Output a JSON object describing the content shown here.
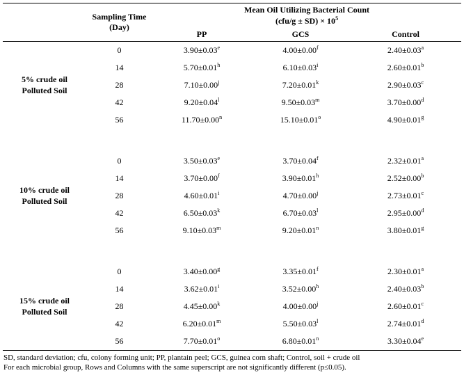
{
  "header": {
    "sampling_time_line1": "Sampling Time",
    "sampling_time_line2": "(Day)",
    "main_line1": "Mean Oil Utilizing Bacterial Count",
    "main_line2": "(cfu/g ± SD) × 10",
    "main_line2_sup": "5",
    "columns": [
      "PP",
      "GCS",
      "Control"
    ]
  },
  "groups": [
    {
      "label": "5% crude oil Polluted Soil",
      "label_lines": [
        "5% crude oil",
        "Polluted Soil"
      ],
      "rows": [
        {
          "day": "0",
          "pp": [
            "3.90±0.03",
            "e"
          ],
          "gcs": [
            "4.00±0.00",
            "f"
          ],
          "control": [
            "2.40±0.03",
            "a"
          ]
        },
        {
          "day": "14",
          "pp": [
            "5.70±0.01",
            "h"
          ],
          "gcs": [
            "6.10±0.03",
            "i"
          ],
          "control": [
            "2.60±0.01",
            "b"
          ]
        },
        {
          "day": "28",
          "pp": [
            "7.10±0.00",
            "j"
          ],
          "gcs": [
            "7.20±0.01",
            "k"
          ],
          "control": [
            "2.90±0.03",
            "c"
          ]
        },
        {
          "day": "42",
          "pp": [
            "9.20±0.04",
            "l"
          ],
          "gcs": [
            "9.50±0.03",
            "m"
          ],
          "control": [
            "3.70±0.00",
            "d"
          ]
        },
        {
          "day": "56",
          "pp": [
            "11.70±0.00",
            "n"
          ],
          "gcs": [
            "15.10±0.01",
            "o"
          ],
          "control": [
            "4.90±0.01",
            "g"
          ]
        }
      ]
    },
    {
      "label": "10% crude oil Polluted Soil",
      "label_lines": [
        "10% crude oil",
        "Polluted Soil"
      ],
      "rows": [
        {
          "day": "0",
          "pp": [
            "3.50±0.03",
            "e"
          ],
          "gcs": [
            "3.70±0.04",
            "f"
          ],
          "control": [
            "2.32±0.01",
            "a"
          ]
        },
        {
          "day": "14",
          "pp": [
            "3.70±0.00",
            "f"
          ],
          "gcs": [
            "3.90±0.01",
            "h"
          ],
          "control": [
            "2.52±0.00",
            "b"
          ]
        },
        {
          "day": "28",
          "pp": [
            "4.60±0.01",
            "i"
          ],
          "gcs": [
            "4.70±0.00",
            "j"
          ],
          "control": [
            "2.73±0.01",
            "c"
          ]
        },
        {
          "day": "42",
          "pp": [
            "6.50±0.03",
            "k"
          ],
          "gcs": [
            "6.70±0.03",
            "l"
          ],
          "control": [
            "2.95±0.00",
            "d"
          ]
        },
        {
          "day": "56",
          "pp": [
            "9.10±0.03",
            "m"
          ],
          "gcs": [
            "9.20±0.01",
            "n"
          ],
          "control": [
            "3.80±0.01",
            "g"
          ]
        }
      ]
    },
    {
      "label": "15% crude oil Polluted Soil",
      "label_lines": [
        "15% crude oil",
        "Polluted Soil"
      ],
      "rows": [
        {
          "day": "0",
          "pp": [
            "3.40±0.00",
            "g"
          ],
          "gcs": [
            "3.35±0.01",
            "f"
          ],
          "control": [
            "2.30±0.01",
            "a"
          ]
        },
        {
          "day": "14",
          "pp": [
            "3.62±0.01",
            "i"
          ],
          "gcs": [
            "3.52±0.00",
            "h"
          ],
          "control": [
            "2.40±0.03",
            "b"
          ]
        },
        {
          "day": "28",
          "pp": [
            "4.45±0.00",
            "k"
          ],
          "gcs": [
            "4.00±0.00",
            "j"
          ],
          "control": [
            "2.60±0.01",
            "c"
          ]
        },
        {
          "day": "42",
          "pp": [
            "6.20±0.01",
            "m"
          ],
          "gcs": [
            "5.50±0.03",
            "l"
          ],
          "control": [
            "2.74±0.01",
            "d"
          ]
        },
        {
          "day": "56",
          "pp": [
            "7.70±0.01",
            "o"
          ],
          "gcs": [
            "6.80±0.01",
            "n"
          ],
          "control": [
            "3.30±0.04",
            "e"
          ]
        }
      ]
    }
  ],
  "footnotes": [
    "SD, standard deviation; cfu, colony forming unit; PP, plantain peel; GCS, guinea corn shaft; Control, soil + crude oil",
    "For each microbial group, Rows and Columns with the same superscript are not significantly different (p≤0.05)."
  ]
}
